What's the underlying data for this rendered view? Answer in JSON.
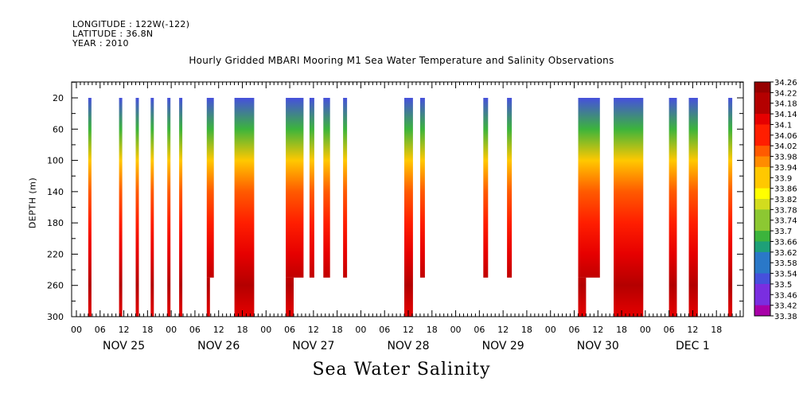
{
  "header": {
    "longitude": "LONGITUDE : 122W(-122)",
    "latitude": "LATITUDE : 36.8N",
    "year": "YEAR : 2010"
  },
  "colors": {
    "scale": [
      "#a800a8",
      "#7a2ee0",
      "#4650dc",
      "#2a78c8",
      "#1ea078",
      "#3cb43c",
      "#8cc832",
      "#d2dc1e",
      "#ffff00",
      "#ffc800",
      "#ff8c00",
      "#ff5a00",
      "#ff1e00",
      "#e60000",
      "#b40000",
      "#960000"
    ],
    "axis": "#000000"
  },
  "chart_data": {
    "type": "heatmap",
    "title": "Hourly Gridded MBARI Mooring M1 Sea Water Temperature and Salinity Observations",
    "xlabel": "",
    "ylabel": "DEPTH (m)",
    "caption": "Sea Water Salinity",
    "x_tick_labels": [
      "00",
      "06",
      "12",
      "18",
      "00",
      "06",
      "12",
      "18",
      "00",
      "06",
      "12",
      "18",
      "00",
      "06",
      "12",
      "18",
      "00",
      "06",
      "12",
      "18",
      "00",
      "06",
      "12",
      "18",
      "00",
      "06",
      "12",
      "18"
    ],
    "day_labels": [
      "NOV 25",
      "NOV 26",
      "NOV 27",
      "NOV 28",
      "NOV 29",
      "NOV 30",
      "DEC  1"
    ],
    "y_ticks": [
      20,
      60,
      100,
      140,
      180,
      220,
      260,
      300
    ],
    "ylim": [
      300,
      0
    ],
    "colorbar_labels": [
      "34.26",
      "34.22",
      "34.18",
      "34.14",
      "34.1",
      "34.06",
      "34.02",
      "33.98",
      "33.94",
      "33.9",
      "33.86",
      "33.82",
      "33.78",
      "33.74",
      "33.7",
      "33.66",
      "33.62",
      "33.58",
      "33.54",
      "33.5",
      "33.46",
      "33.42",
      "33.38"
    ],
    "colorbar_range": [
      33.38,
      34.26
    ],
    "x_range_hours": [
      0,
      168
    ],
    "profile_depths": [
      20,
      60,
      100,
      140,
      180,
      220,
      260,
      300
    ],
    "profile_values": [
      33.52,
      33.68,
      33.9,
      34.0,
      34.06,
      34.12,
      34.2,
      34.14
    ],
    "segments": [
      {
        "start": 3.0,
        "end": 3.8,
        "top": 20,
        "bottom": 300
      },
      {
        "start": 10.8,
        "end": 11.6,
        "top": 20,
        "bottom": 300
      },
      {
        "start": 15.0,
        "end": 15.8,
        "top": 20,
        "bottom": 300
      },
      {
        "start": 18.8,
        "end": 19.6,
        "top": 20,
        "bottom": 300
      },
      {
        "start": 23.0,
        "end": 23.8,
        "top": 20,
        "bottom": 300
      },
      {
        "start": 26.0,
        "end": 26.8,
        "top": 20,
        "bottom": 300
      },
      {
        "start": 33.0,
        "end": 34.8,
        "top": 20,
        "bottom": 250
      },
      {
        "start": 33.0,
        "end": 33.8,
        "top": 250,
        "bottom": 300
      },
      {
        "start": 40.0,
        "end": 45.0,
        "top": 20,
        "bottom": 300
      },
      {
        "start": 53.0,
        "end": 57.5,
        "top": 20,
        "bottom": 250
      },
      {
        "start": 53.0,
        "end": 55.0,
        "top": 250,
        "bottom": 300
      },
      {
        "start": 59.0,
        "end": 60.2,
        "top": 20,
        "bottom": 250
      },
      {
        "start": 62.5,
        "end": 64.2,
        "top": 20,
        "bottom": 250
      },
      {
        "start": 67.5,
        "end": 68.5,
        "top": 20,
        "bottom": 250
      },
      {
        "start": 83.0,
        "end": 85.2,
        "top": 20,
        "bottom": 300
      },
      {
        "start": 87.0,
        "end": 88.2,
        "top": 20,
        "bottom": 250
      },
      {
        "start": 103.0,
        "end": 104.2,
        "top": 20,
        "bottom": 250
      },
      {
        "start": 109.0,
        "end": 110.2,
        "top": 20,
        "bottom": 250
      },
      {
        "start": 127.0,
        "end": 132.5,
        "top": 20,
        "bottom": 250
      },
      {
        "start": 127.0,
        "end": 129.0,
        "top": 250,
        "bottom": 300
      },
      {
        "start": 136.0,
        "end": 143.5,
        "top": 20,
        "bottom": 300
      },
      {
        "start": 150.0,
        "end": 152.0,
        "top": 20,
        "bottom": 300
      },
      {
        "start": 155.0,
        "end": 157.3,
        "top": 20,
        "bottom": 300
      },
      {
        "start": 165.0,
        "end": 166.0,
        "top": 20,
        "bottom": 300
      }
    ]
  }
}
